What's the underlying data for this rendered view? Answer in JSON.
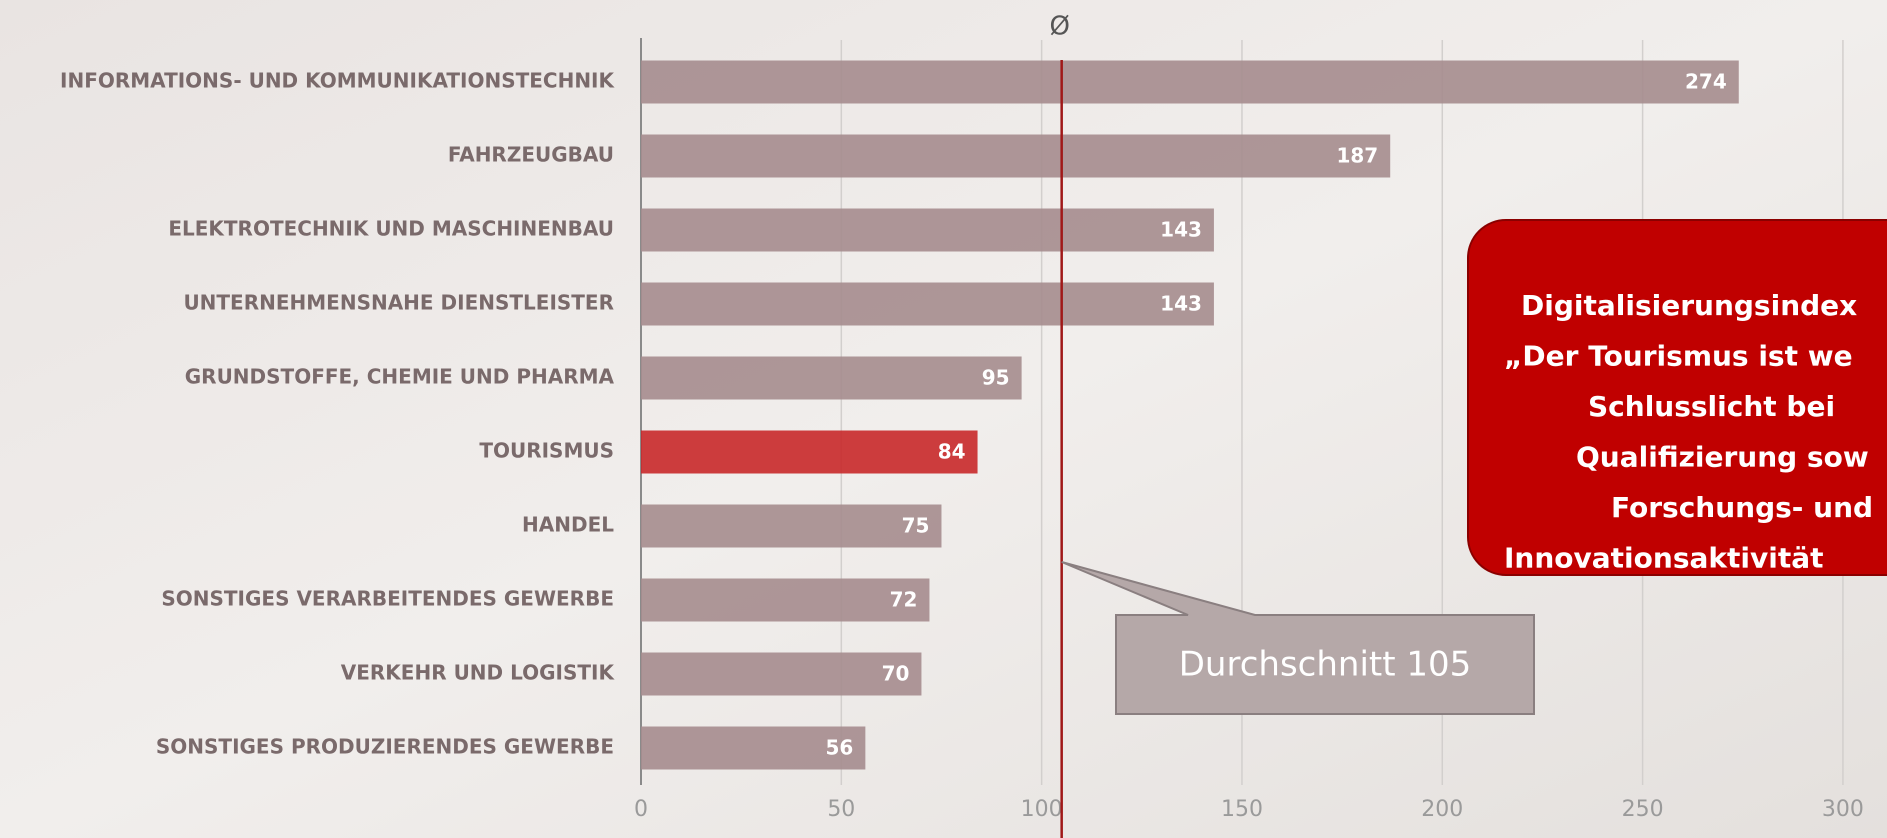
{
  "chart_data": {
    "type": "bar",
    "orientation": "horizontal",
    "categories": [
      "INFORMATIONS- UND KOMMUNIKATIONSTECHNIK",
      "FAHRZEUGBAU",
      "ELEKTROTECHNIK UND MASCHINENBAU",
      "UNTERNEHMENSNAHE DIENSTLEISTER",
      "GRUNDSTOFFE, CHEMIE UND PHARMA",
      "TOURISMUS",
      "HANDEL",
      "SONSTIGES VERARBEITENDES GEWERBE",
      "VERKEHR UND LOGISTIK",
      "SONSTIGES PRODUZIERENDES GEWERBE"
    ],
    "values": [
      274,
      187,
      143,
      143,
      95,
      84,
      75,
      72,
      70,
      56
    ],
    "colors": [
      "#a58c8e",
      "#a58c8e",
      "#a58c8e",
      "#a58c8e",
      "#a58c8e",
      "#c8282a",
      "#a58c8e",
      "#a58c8e",
      "#a58c8e",
      "#a58c8e"
    ],
    "xlim": [
      0,
      311
    ],
    "xticks": [
      0,
      50,
      100,
      150,
      200,
      250,
      300
    ],
    "grid": true,
    "average": {
      "value": 105,
      "label": "Durchschnitt 105",
      "symbol": "Ø"
    },
    "annotation": [
      "Digitalisierungsindex",
      "„Der Tourismus ist we",
      "Schlusslicht bei",
      "Qualifizierung sow",
      "Forschungs- und",
      "Innovationsaktivität"
    ]
  }
}
